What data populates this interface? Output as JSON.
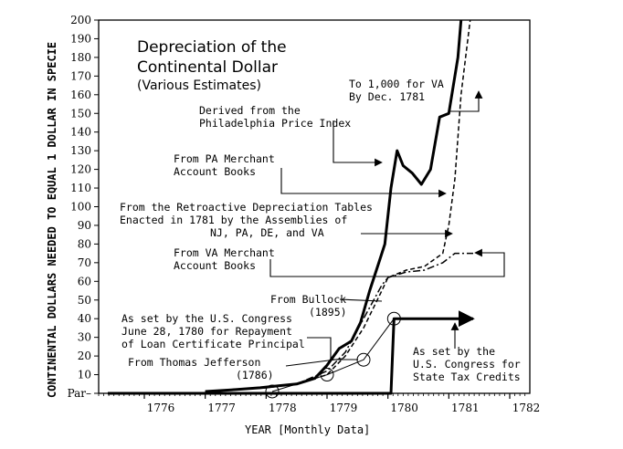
{
  "chart_data": {
    "type": "line",
    "title": "Depreciation of the",
    "title_line2": "Continental Dollar",
    "subtitle": "(Various Estimates)",
    "xlabel": "YEAR  [Monthly Data]",
    "ylabel": "CONTINENTAL DOLLARS NEEDED TO EQUAL 1 DOLLAR IN SPECIE",
    "xlim": [
      1775.25,
      1782.33
    ],
    "ylim": [
      0,
      200
    ],
    "x_ticks": [
      1776,
      1777,
      1778,
      1779,
      1780,
      1781,
      1782
    ],
    "x_tick_labels": [
      "1776",
      "1777",
      "1778",
      "1779",
      "1780",
      "1781",
      "1782"
    ],
    "y_ticks": [
      0,
      10,
      20,
      30,
      40,
      50,
      60,
      70,
      80,
      90,
      100,
      110,
      120,
      130,
      140,
      150,
      160,
      170,
      180,
      190,
      200
    ],
    "y_tick_labels": [
      "Par",
      "10",
      "20",
      "30",
      "40",
      "50",
      "60",
      "70",
      "80",
      "90",
      "100",
      "110",
      "120",
      "130",
      "140",
      "150",
      "160",
      "170",
      "180",
      "190",
      "200"
    ],
    "series": [
      {
        "name": "Derived from the Philadelphia Price Index",
        "style": "bold-solid",
        "x": [
          1777.0,
          1777.5,
          1777.9,
          1778.2,
          1778.5,
          1778.8,
          1779.0,
          1779.2,
          1779.4,
          1779.55,
          1779.7,
          1779.85,
          1779.95,
          1780.05,
          1780.15,
          1780.25,
          1780.4,
          1780.55,
          1780.7,
          1780.85,
          1781.0,
          1781.15,
          1781.2
        ],
        "values": [
          1,
          2,
          3,
          4,
          5,
          8,
          15,
          24,
          28,
          38,
          55,
          70,
          80,
          110,
          130,
          122,
          118,
          112,
          120,
          148,
          150,
          180,
          200
        ]
      },
      {
        "name": "From PA Merchant Account Books",
        "style": "dashed",
        "x": [
          1777.0,
          1777.5,
          1778.0,
          1778.5,
          1779.0,
          1779.3,
          1779.6,
          1779.9,
          1780.0,
          1780.3,
          1780.6,
          1780.9,
          1781.0,
          1781.1,
          1781.2,
          1781.35
        ],
        "values": [
          1,
          2,
          3,
          5,
          10,
          20,
          35,
          55,
          62,
          66,
          68,
          75,
          90,
          115,
          160,
          200
        ]
      },
      {
        "name": "From the Retroactive Depreciation Tables Enacted in 1781 by the Assemblies of NJ, PA, DE, and VA",
        "style": "dash-dot",
        "x": [
          1777.0,
          1777.5,
          1778.0,
          1778.5,
          1779.0,
          1779.3,
          1779.6,
          1779.9,
          1780.0,
          1780.3,
          1780.6,
          1780.9,
          1781.1,
          1781.4
        ],
        "values": [
          1,
          2,
          3,
          5,
          12,
          22,
          40,
          58,
          62,
          65,
          66,
          70,
          75,
          75
        ]
      },
      {
        "name": "From Thomas Jefferson (1786)",
        "style": "thin-circles",
        "x": [
          1778.1,
          1779.0,
          1779.6,
          1780.1
        ],
        "values": [
          1,
          10,
          18,
          40
        ]
      },
      {
        "name": "As set by the U.S. Congress for State Tax Credits",
        "style": "bold-step-arrow",
        "x": [
          1775.4,
          1780.05,
          1780.1,
          1781.4
        ],
        "values": [
          0,
          0,
          40,
          40
        ]
      }
    ],
    "annotations": [
      {
        "lines": [
          "To 1,000 for VA",
          "By Dec. 1781"
        ]
      },
      {
        "lines": [
          "Derived from the",
          "Philadelphia Price Index"
        ]
      },
      {
        "lines": [
          "From PA Merchant",
          "Account Books"
        ]
      },
      {
        "lines": [
          "From the Retroactive Depreciation Tables",
          "Enacted in 1781 by the Assemblies of",
          "NJ, PA, DE, and VA"
        ]
      },
      {
        "lines": [
          "From VA Merchant",
          "Account Books"
        ]
      },
      {
        "lines": [
          "From Bullock",
          "(1895)"
        ]
      },
      {
        "lines": [
          "As set by the U.S. Congress",
          "June 28, 1780 for Repayment",
          "of Loan Certificate Principal"
        ]
      },
      {
        "lines": [
          "From Thomas Jefferson",
          "(1786)"
        ]
      },
      {
        "lines": [
          "As set by the",
          "U.S. Congress for",
          "State Tax Credits"
        ]
      }
    ]
  }
}
